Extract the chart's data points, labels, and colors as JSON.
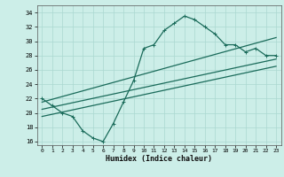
{
  "title": "",
  "xlabel": "Humidex (Indice chaleur)",
  "ylabel": "",
  "xlim": [
    -0.5,
    23.5
  ],
  "ylim": [
    15.5,
    35.0
  ],
  "xticks": [
    0,
    1,
    2,
    3,
    4,
    5,
    6,
    7,
    8,
    9,
    10,
    11,
    12,
    13,
    14,
    15,
    16,
    17,
    18,
    19,
    20,
    21,
    22,
    23
  ],
  "yticks": [
    16,
    18,
    20,
    22,
    24,
    26,
    28,
    30,
    32,
    34
  ],
  "bg_color": "#cceee8",
  "line_color": "#1a6b5a",
  "grid_color": "#aad8d0",
  "main_x": [
    0,
    1,
    2,
    3,
    4,
    5,
    6,
    7,
    8,
    9,
    10,
    11,
    12,
    13,
    14,
    15,
    16,
    17,
    18,
    19,
    20,
    21,
    22,
    23
  ],
  "main_y": [
    22.0,
    21.0,
    20.0,
    19.5,
    17.5,
    16.5,
    16.0,
    18.5,
    21.5,
    24.5,
    29.0,
    29.5,
    31.5,
    32.5,
    33.5,
    33.0,
    32.0,
    31.0,
    29.5,
    29.5,
    28.5,
    29.0,
    28.0,
    28.0
  ],
  "trend1_x": [
    0,
    23
  ],
  "trend1_y": [
    21.5,
    30.5
  ],
  "trend2_x": [
    0,
    23
  ],
  "trend2_y": [
    20.5,
    27.5
  ],
  "trend3_x": [
    0,
    23
  ],
  "trend3_y": [
    19.5,
    26.5
  ],
  "marker_size": 3.0,
  "linewidth": 0.9
}
